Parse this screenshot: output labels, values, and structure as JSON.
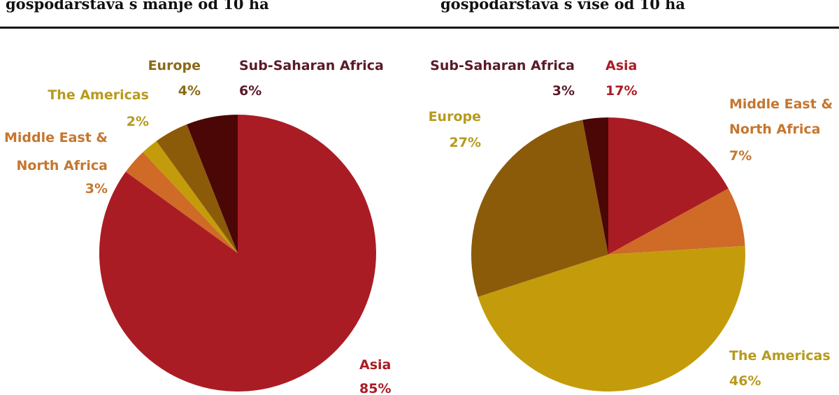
{
  "chart_data": [
    {
      "type": "pie",
      "title": "gospodarstava s manje od 10 ha",
      "slices": [
        {
          "label": "Asia",
          "value": 85,
          "value_label": "85%",
          "color": "#aa1c24"
        },
        {
          "label": "Middle East & North Africa",
          "value": 3,
          "value_label": "3%",
          "color": "#cf6a27"
        },
        {
          "label": "The Americas",
          "value": 2,
          "value_label": "2%",
          "color": "#c49c0b"
        },
        {
          "label": "Europe",
          "value": 4,
          "value_label": "4%",
          "color": "#8b5b0a"
        },
        {
          "label": "Sub-Saharan Africa",
          "value": 6,
          "value_label": "6%",
          "color": "#4b0606"
        }
      ],
      "label_colors": {
        "Asia": "#aa1c24",
        "Middle East & North Africa": "#c5762f",
        "The Americas": "#b79a1d",
        "Europe": "#8b6a18",
        "Sub-Saharan Africa": "#5a1a28"
      }
    },
    {
      "type": "pie",
      "title": "gospodarstava s više od 10 ha",
      "slices": [
        {
          "label": "Asia",
          "value": 17,
          "value_label": "17%",
          "color": "#aa1c24"
        },
        {
          "label": "Middle East & North Africa",
          "value": 7,
          "value_label": "7%",
          "color": "#cf6a27"
        },
        {
          "label": "The Americas",
          "value": 46,
          "value_label": "46%",
          "color": "#c49c0b"
        },
        {
          "label": "Europe",
          "value": 27,
          "value_label": "27%",
          "color": "#8b5b0a"
        },
        {
          "label": "Sub-Saharan Africa",
          "value": 3,
          "value_label": "3%",
          "color": "#4b0606"
        }
      ],
      "label_colors": {
        "Asia": "#aa1c24",
        "Middle East & North Africa": "#c5762f",
        "The Americas": "#b79a1d",
        "Europe": "#b79a1d",
        "Sub-Saharan Africa": "#5a1a28"
      }
    }
  ]
}
